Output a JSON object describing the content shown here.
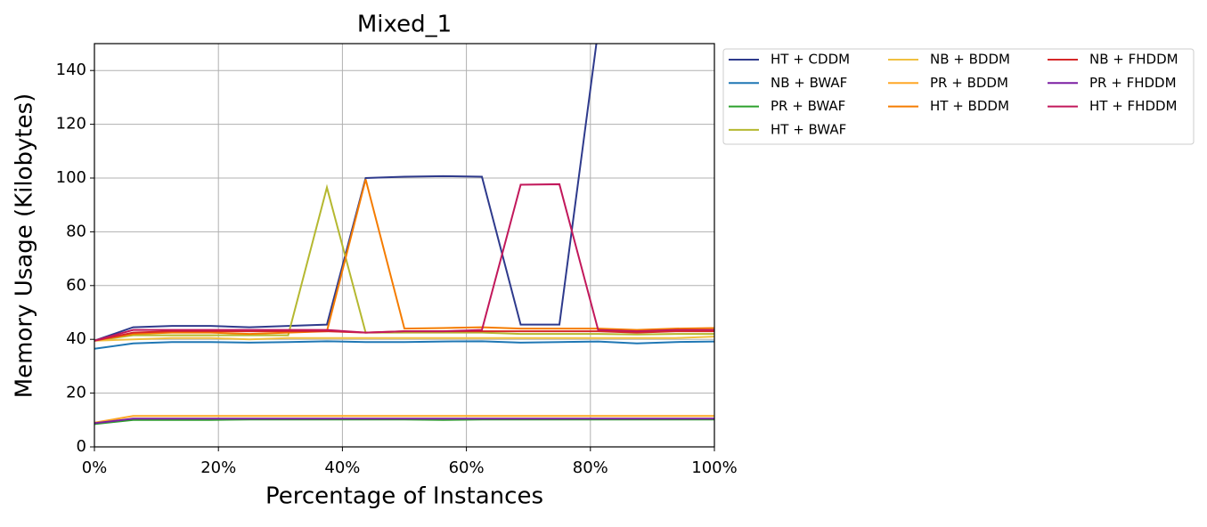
{
  "chart_data": {
    "type": "line",
    "title": "Mixed_1",
    "x_label": "Percentage of Instances",
    "y_label": "Memory Usage (Kilobytes)",
    "x": [
      0,
      6.25,
      12.5,
      18.75,
      25,
      31.25,
      37.5,
      43.75,
      50,
      56.25,
      62.5,
      68.75,
      75,
      81.25,
      87.5,
      93.75,
      100
    ],
    "xlim": [
      0,
      100
    ],
    "xticks": [
      {
        "value": 0,
        "label": "0%"
      },
      {
        "value": 20,
        "label": "20%"
      },
      {
        "value": 40,
        "label": "40%"
      },
      {
        "value": 60,
        "label": "60%"
      },
      {
        "value": 80,
        "label": "80%"
      },
      {
        "value": 100,
        "label": "100%"
      }
    ],
    "ylim": [
      0,
      150
    ],
    "yticks": [
      0,
      20,
      40,
      60,
      80,
      100,
      120,
      140
    ],
    "grid": true,
    "series": [
      {
        "name": "HT + CDDM",
        "color": "#2e3a8c",
        "values": [
          39.5,
          44.5,
          45,
          45,
          44.5,
          45,
          45.5,
          100,
          100.5,
          100.7,
          100.5,
          45.5,
          45.5,
          155,
          160,
          160,
          160
        ]
      },
      {
        "name": "NB + BWAF",
        "color": "#1f77b4",
        "values": [
          36.5,
          38.5,
          39,
          39,
          38.8,
          39,
          39.3,
          39,
          39,
          39.2,
          39.3,
          38.8,
          39,
          39.2,
          38.5,
          39,
          39.2
        ]
      },
      {
        "name": "PR + BWAF",
        "color": "#2ca02c",
        "values": [
          8.5,
          10,
          10,
          10,
          10.2,
          10.2,
          10.2,
          10.2,
          10.2,
          10,
          10.2,
          10.2,
          10.2,
          10.2,
          10.2,
          10.2,
          10.2
        ]
      },
      {
        "name": "HT + BWAF",
        "color": "#b5b830",
        "values": [
          39.5,
          41.5,
          41.5,
          41.5,
          41.5,
          41.5,
          96.5,
          42.5,
          42.5,
          42.5,
          42.5,
          42,
          42,
          42,
          41.8,
          42,
          42
        ]
      },
      {
        "name": "NB + BDDM",
        "color": "#f0c040",
        "values": [
          39.5,
          40,
          40.5,
          40.5,
          40,
          40.5,
          40.5,
          40.5,
          40.5,
          40.5,
          40.5,
          40.5,
          40.5,
          40.5,
          40.5,
          40.5,
          41
        ]
      },
      {
        "name": "PR + BDDM",
        "color": "#ffa726",
        "values": [
          9,
          11.5,
          11.5,
          11.5,
          11.5,
          11.5,
          11.5,
          11.5,
          11.5,
          11.5,
          11.5,
          11.5,
          11.5,
          11.5,
          11.5,
          11.5,
          11.5
        ]
      },
      {
        "name": "HT + BDDM",
        "color": "#f57c00",
        "values": [
          39.5,
          42,
          42.5,
          42.5,
          42,
          42.5,
          43,
          99.5,
          44,
          44.2,
          44.5,
          44,
          44,
          44,
          43.5,
          44,
          44.2
        ]
      },
      {
        "name": "NB + FHDDM",
        "color": "#d62728",
        "values": [
          39.5,
          42.5,
          43,
          43,
          43,
          43,
          43,
          42.5,
          43,
          43,
          43,
          43,
          43,
          43,
          42.5,
          43,
          43
        ]
      },
      {
        "name": "PR + FHDDM",
        "color": "#7b1fa2",
        "values": [
          8.8,
          10.5,
          10.5,
          10.5,
          10.5,
          10.5,
          10.5,
          10.5,
          10.5,
          10.5,
          10.5,
          10.5,
          10.5,
          10.5,
          10.5,
          10.5,
          10.5
        ]
      },
      {
        "name": "HT + FHDDM",
        "color": "#c2185b",
        "values": [
          39.5,
          43.5,
          43.5,
          43.5,
          43.5,
          43.5,
          43.5,
          42.5,
          43,
          43,
          43.5,
          97.5,
          97.7,
          43.5,
          43,
          43.5,
          43.5
        ]
      }
    ]
  }
}
